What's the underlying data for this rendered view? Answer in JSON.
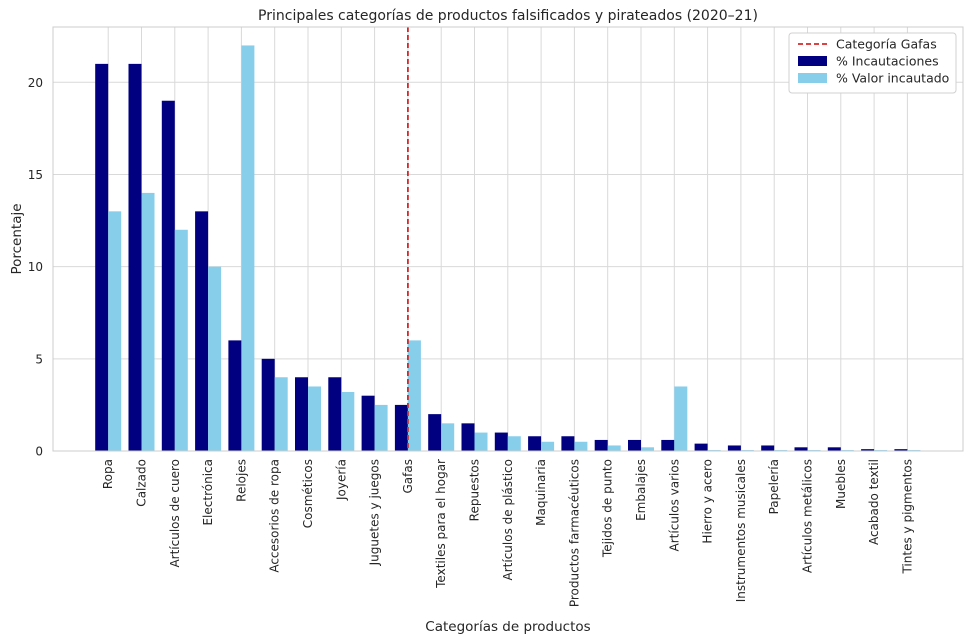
{
  "chart_data": {
    "type": "bar",
    "title": "Principales categorías de productos falsificados y pirateados (2020–21)",
    "xlabel": "Categorías de productos",
    "ylabel": "Porcentaje",
    "ylim": [
      0,
      23
    ],
    "yticks": [
      0,
      5,
      10,
      15,
      20
    ],
    "grid": true,
    "legend_position": "top-right",
    "categories": [
      "Ropa",
      "Calzado",
      "Artículos de cuero",
      "Electrónica",
      "Relojes",
      "Accesorios de ropa",
      "Cosméticos",
      "Joyería",
      "Juguetes y juegos",
      "Gafas",
      "Textiles para el hogar",
      "Repuestos",
      "Artículos de plástico",
      "Maquinaria",
      "Productos farmacéuticos",
      "Tejidos de punto",
      "Embalajes",
      "Artículos varios",
      "Hierro y acero",
      "Instrumentos musicales",
      "Papelería",
      "Artículos metálicos",
      "Muebles",
      "Acabado textil",
      "Tintes y pigmentos"
    ],
    "series": [
      {
        "name": "% Incautaciones",
        "color": "#000080",
        "values": [
          21,
          21,
          19,
          13,
          6,
          5,
          4,
          4,
          3,
          2.5,
          2,
          1.5,
          1,
          0.8,
          0.8,
          0.6,
          0.6,
          0.6,
          0.4,
          0.3,
          0.3,
          0.2,
          0.2,
          0.1,
          0.1
        ]
      },
      {
        "name": "% Valor incautado",
        "color": "#87ceeb",
        "values": [
          13,
          14,
          12,
          10,
          22,
          4,
          3.5,
          3.2,
          2.5,
          6,
          1.5,
          1,
          0.8,
          0.5,
          0.5,
          0.3,
          0.2,
          3.5,
          0.05,
          0.05,
          0.05,
          0.05,
          0.05,
          0.05,
          0.05
        ]
      }
    ],
    "reference_line": {
      "label": "Categoría Gafas",
      "category": "Gafas",
      "color": "#d62728",
      "style": "dashed"
    }
  }
}
